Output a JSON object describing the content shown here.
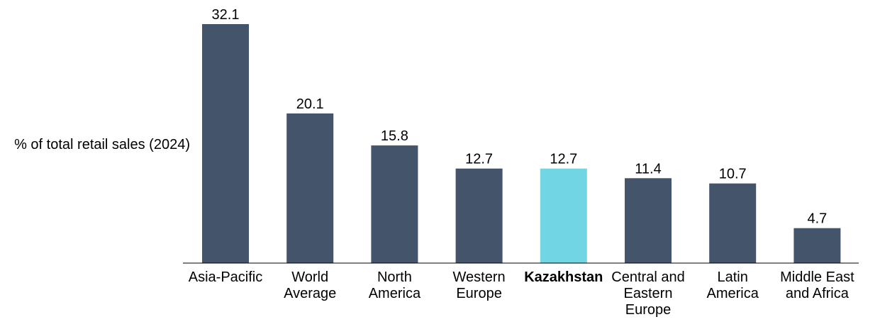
{
  "chart_data": {
    "type": "bar",
    "ylabel": "% of total retail sales (2024)",
    "categories": [
      [
        "Asia-Pacific"
      ],
      [
        "World",
        "Average"
      ],
      [
        "North",
        "America"
      ],
      [
        "Western",
        "Europe"
      ],
      [
        "Kazakhstan"
      ],
      [
        "Central and",
        "Eastern",
        "Europe"
      ],
      [
        "Latin",
        "America"
      ],
      [
        "Middle East",
        "and Africa"
      ]
    ],
    "values": [
      32.1,
      20.1,
      15.8,
      12.7,
      12.7,
      11.4,
      10.7,
      4.7
    ],
    "value_labels": [
      "32.1",
      "20.1",
      "15.8",
      "12.7",
      "12.7",
      "11.4",
      "10.7",
      "4.7"
    ],
    "highlight_index": 4,
    "ylim": [
      0,
      32.1
    ],
    "grid": false,
    "legend": "none",
    "colors": {
      "bar": "#44546a",
      "highlight": "#72d5e3",
      "axis": "#000000"
    }
  }
}
